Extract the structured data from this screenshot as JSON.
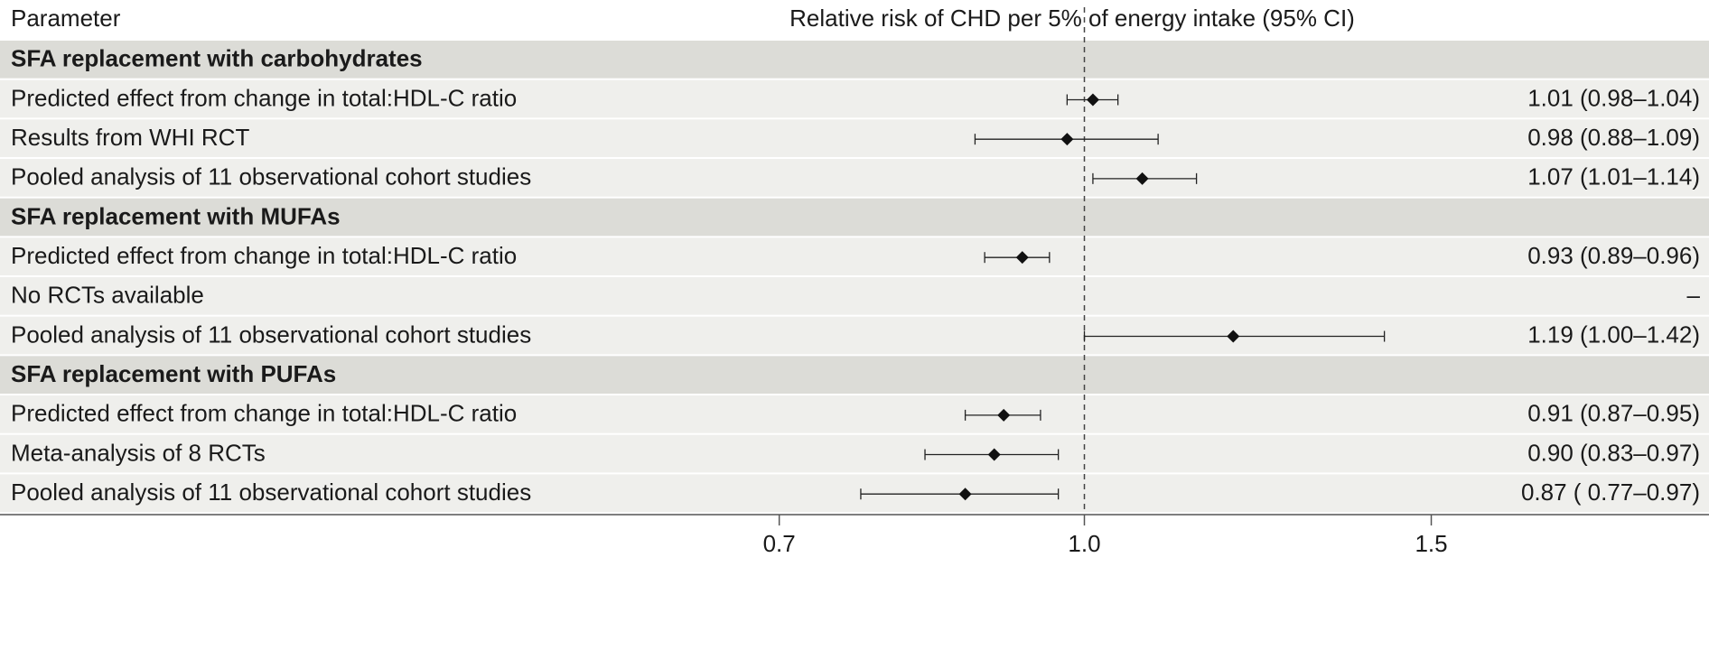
{
  "chart_data": {
    "type": "forest",
    "column_header": "Parameter",
    "xlabel": "Relative risk of CHD per 5% of energy intake (95% CI)",
    "xscale": "log",
    "xlim": [
      0.5,
      2.0
    ],
    "xticks": [
      0.7,
      {
        "value": 1.0,
        "label": "1.0"
      },
      1.5
    ],
    "reference": 1,
    "groups": [
      {
        "title": "SFA replacement with carbohydrates",
        "rows": [
          {
            "label": "Predicted effect from change in total:HDL-C ratio",
            "estimate": 1.01,
            "lower": 0.98,
            "upper": 1.04,
            "ci_label": "1.01 (0.98–1.04)"
          },
          {
            "label": "Results from  WHI RCT",
            "estimate": 0.98,
            "lower": 0.88,
            "upper": 1.09,
            "ci_label": "0.98 (0.88–1.09)"
          },
          {
            "label": "Pooled analysis of 11 observational cohort studies",
            "estimate": 1.07,
            "lower": 1.01,
            "upper": 1.14,
            "ci_label": "1.07 (1.01–1.14)"
          }
        ]
      },
      {
        "title": "SFA replacement with MUFAs",
        "rows": [
          {
            "label": "Predicted effect from change in total:HDL-C ratio",
            "estimate": 0.93,
            "lower": 0.89,
            "upper": 0.96,
            "ci_label": "0.93 (0.89–0.96)"
          },
          {
            "label": "No RCTs available",
            "estimate": null,
            "lower": null,
            "upper": null,
            "ci_label": "–"
          },
          {
            "label": "Pooled analysis of 11 observational cohort studies",
            "estimate": 1.19,
            "lower": 1.0,
            "upper": 1.42,
            "ci_label": "1.19 (1.00–1.42)"
          }
        ]
      },
      {
        "title": "SFA replacement with PUFAs",
        "rows": [
          {
            "label": "Predicted effect from change in total:HDL-C ratio",
            "estimate": 0.91,
            "lower": 0.87,
            "upper": 0.95,
            "ci_label": "0.91 (0.87–0.95)"
          },
          {
            "label": "Meta-analysis of 8 RCTs",
            "estimate": 0.9,
            "lower": 0.83,
            "upper": 0.97,
            "ci_label": "0.90 (0.83–0.97)"
          },
          {
            "label": "Pooled analysis of 11 observational cohort studies",
            "estimate": 0.87,
            "lower": 0.77,
            "upper": 0.97,
            "ci_label": "0.87 ( 0.77–0.97)"
          }
        ]
      }
    ]
  }
}
